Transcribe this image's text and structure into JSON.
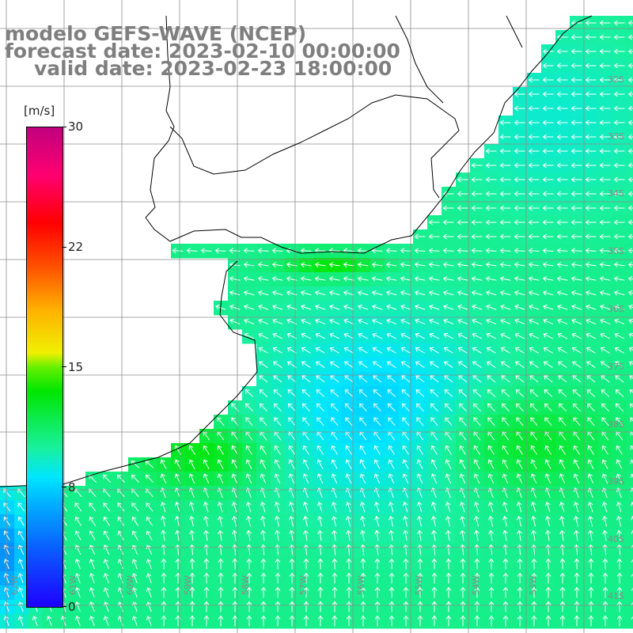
{
  "title": {
    "line1": "modelo GEFS-WAVE (NCEP)",
    "line2": "forecast date: 2023-02-10 00:00:00",
    "line3": "valid date: 2023-02-23 18:00:00"
  },
  "colorbar": {
    "unit": "[m/s]",
    "ticks": [
      "30",
      "22",
      "15",
      "8",
      "0"
    ]
  },
  "lat_labels": [
    "32S",
    "33S",
    "34S",
    "35S",
    "36S",
    "37S",
    "38S",
    "39S",
    "40S",
    "41S"
  ],
  "lon_labels": [
    "62W",
    "61W",
    "60W",
    "59W",
    "58W",
    "57W",
    "56W",
    "55W",
    "54W",
    "53W"
  ],
  "colors": {
    "land": "#ffffff",
    "grid": "#8c8c8c",
    "coast": "#000000",
    "arrows": "#ffffff",
    "title": "#7f7f7f"
  }
}
